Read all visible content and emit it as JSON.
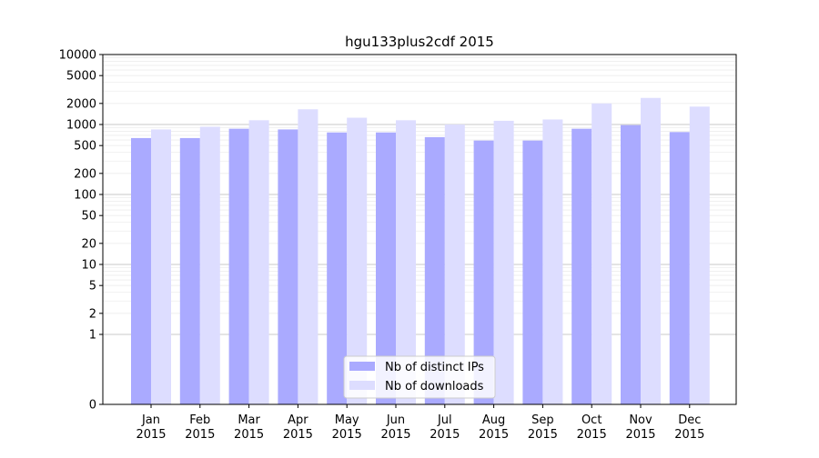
{
  "chart_data": {
    "type": "bar",
    "title": "hgu133plus2cdf 2015",
    "xlabel": "",
    "ylabel": "",
    "yscale": "symlog",
    "ylim": [
      0,
      10000
    ],
    "yticks": [
      0,
      1,
      2,
      5,
      10,
      20,
      50,
      100,
      200,
      500,
      1000,
      2000,
      5000,
      10000
    ],
    "ytick_labels": [
      "0",
      "1",
      "2",
      "5",
      "10",
      "20",
      "50",
      "100",
      "200",
      "500",
      "1000",
      "2000",
      "5000",
      "10000"
    ],
    "categories": [
      [
        "Jan",
        "2015"
      ],
      [
        "Feb",
        "2015"
      ],
      [
        "Mar",
        "2015"
      ],
      [
        "Apr",
        "2015"
      ],
      [
        "May",
        "2015"
      ],
      [
        "Jun",
        "2015"
      ],
      [
        "Jul",
        "2015"
      ],
      [
        "Aug",
        "2015"
      ],
      [
        "Sep",
        "2015"
      ],
      [
        "Oct",
        "2015"
      ],
      [
        "Nov",
        "2015"
      ],
      [
        "Dec",
        "2015"
      ]
    ],
    "series": [
      {
        "name": "Nb of distinct IPs",
        "color": "#aaaaff",
        "values": [
          640,
          640,
          870,
          850,
          770,
          770,
          660,
          590,
          590,
          870,
          980,
          780
        ]
      },
      {
        "name": "Nb of downloads",
        "color": "#ddddff",
        "values": [
          850,
          930,
          1150,
          1650,
          1250,
          1150,
          1000,
          1130,
          1180,
          2000,
          2400,
          1800
        ]
      }
    ],
    "grid": true,
    "legend_position": "lower-center"
  }
}
